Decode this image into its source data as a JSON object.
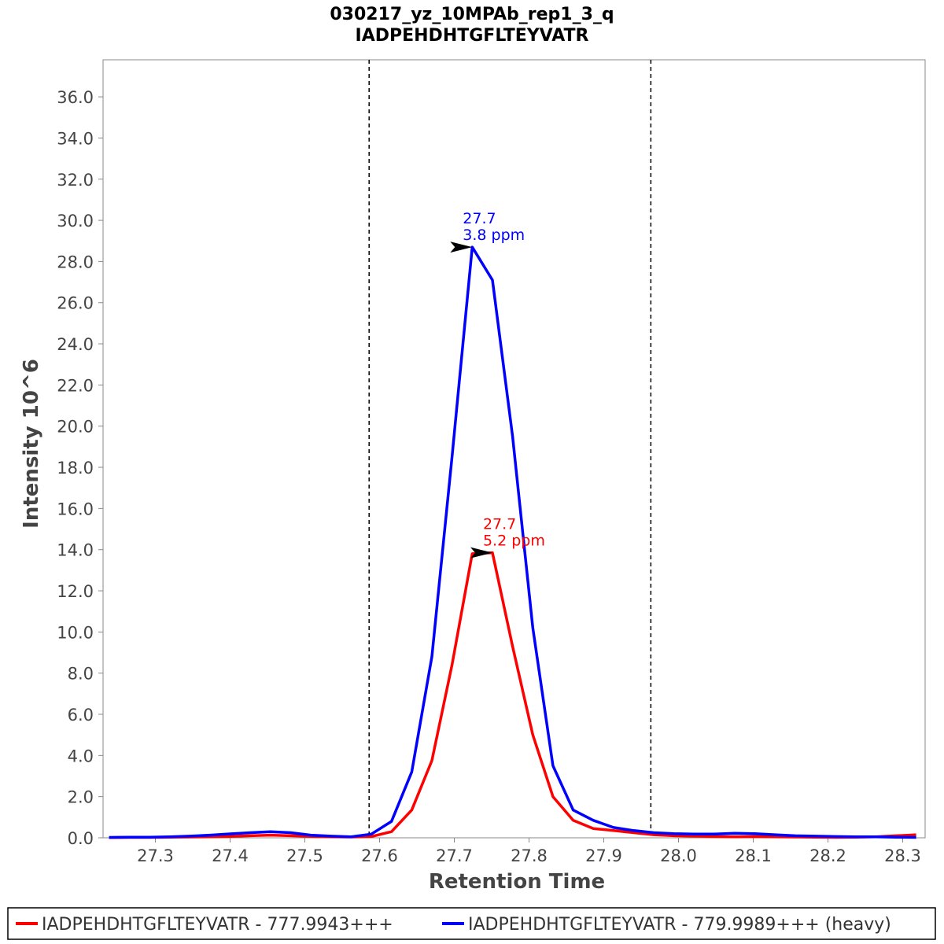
{
  "chart_data": {
    "type": "line",
    "title": "030217_yz_10MPAb_rep1_3_q",
    "subtitle": "IADPEHDHTGFLTEYVATR",
    "xlabel": "Retention Time",
    "ylabel": "Intensity 10^6",
    "xlim": [
      27.23,
      28.33
    ],
    "ylim": [
      0,
      37.8
    ],
    "x_ticks": [
      "27.3",
      "27.4",
      "27.5",
      "27.6",
      "27.7",
      "27.8",
      "27.9",
      "28.0",
      "28.1",
      "28.2",
      "28.3"
    ],
    "y_ticks": [
      "0.0",
      "2.0",
      "4.0",
      "6.0",
      "8.0",
      "10.0",
      "12.0",
      "14.0",
      "16.0",
      "18.0",
      "20.0",
      "22.0",
      "24.0",
      "26.0",
      "28.0",
      "30.0",
      "32.0",
      "34.0",
      "36.0"
    ],
    "grid": false,
    "legend_position": "bottom",
    "boundaries": [
      27.586,
      27.963
    ],
    "series": [
      {
        "name": "IADPEHDHTGFLTEYVATR - 777.9943+++",
        "color": "#ff0000",
        "x": [
          27.238,
          27.265,
          27.292,
          27.319,
          27.346,
          27.373,
          27.4,
          27.427,
          27.454,
          27.481,
          27.508,
          27.535,
          27.562,
          27.589,
          27.616,
          27.643,
          27.67,
          27.697,
          27.724,
          27.751,
          27.778,
          27.805,
          27.832,
          27.859,
          27.886,
          27.913,
          27.94,
          27.967,
          27.994,
          28.021,
          28.048,
          28.075,
          28.102,
          28.129,
          28.156,
          28.183,
          28.21,
          28.237,
          28.264,
          28.291,
          28.318
        ],
        "values": [
          0.01,
          0.02,
          0.02,
          0.03,
          0.04,
          0.05,
          0.07,
          0.1,
          0.13,
          0.1,
          0.07,
          0.05,
          0.04,
          0.06,
          0.3,
          1.35,
          3.75,
          8.4,
          13.8,
          13.85,
          9.3,
          5.0,
          2.0,
          0.85,
          0.45,
          0.35,
          0.25,
          0.15,
          0.1,
          0.08,
          0.06,
          0.05,
          0.06,
          0.05,
          0.04,
          0.03,
          0.02,
          0.03,
          0.05,
          0.1,
          0.15
        ]
      },
      {
        "name": "IADPEHDHTGFLTEYVATR - 779.9989+++ (heavy)",
        "color": "#0000ff",
        "x": [
          27.238,
          27.265,
          27.292,
          27.319,
          27.346,
          27.373,
          27.4,
          27.427,
          27.454,
          27.481,
          27.508,
          27.535,
          27.562,
          27.589,
          27.616,
          27.643,
          27.67,
          27.697,
          27.724,
          27.751,
          27.778,
          27.805,
          27.832,
          27.859,
          27.886,
          27.913,
          27.94,
          27.967,
          27.994,
          28.021,
          28.048,
          28.075,
          28.102,
          28.129,
          28.156,
          28.183,
          28.21,
          28.237,
          28.264,
          28.291,
          28.318
        ],
        "values": [
          0.02,
          0.03,
          0.03,
          0.05,
          0.08,
          0.13,
          0.19,
          0.25,
          0.3,
          0.25,
          0.13,
          0.08,
          0.05,
          0.18,
          0.8,
          3.2,
          8.8,
          18.5,
          28.7,
          27.1,
          19.5,
          10.2,
          3.5,
          1.35,
          0.85,
          0.5,
          0.35,
          0.25,
          0.2,
          0.18,
          0.18,
          0.22,
          0.2,
          0.15,
          0.1,
          0.08,
          0.06,
          0.05,
          0.05,
          0.03,
          0.02
        ]
      }
    ],
    "annotations": [
      {
        "x": 27.724,
        "y": 28.7,
        "lines": [
          "27.7",
          "3.8 ppm"
        ],
        "color": "#0000ff"
      },
      {
        "x": 27.751,
        "y": 13.85,
        "lines": [
          "27.7",
          "5.2 ppm"
        ],
        "color": "#ff0000"
      }
    ]
  }
}
